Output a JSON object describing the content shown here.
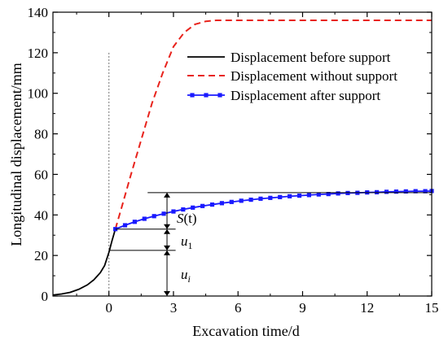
{
  "chart_data": {
    "type": "line",
    "xlabel": "Excavation time/d",
    "ylabel": "Longitudinal displacement/mm",
    "xlim": [
      -2.6,
      15
    ],
    "ylim": [
      0,
      140
    ],
    "x_ticks": [
      0,
      3,
      6,
      9,
      12,
      15
    ],
    "y_ticks": [
      0,
      20,
      40,
      60,
      80,
      100,
      120,
      140
    ],
    "grid": false,
    "legend_position": "top-right",
    "series": [
      {
        "name": "Displacement before support",
        "color": "#000000",
        "style": "solid",
        "marker": "none",
        "points": [
          [
            -2.6,
            0.5
          ],
          [
            -2.2,
            1.0
          ],
          [
            -1.8,
            1.8
          ],
          [
            -1.4,
            3.3
          ],
          [
            -1.0,
            5.5
          ],
          [
            -0.7,
            8.0
          ],
          [
            -0.4,
            11.5
          ],
          [
            -0.2,
            15.0
          ],
          [
            0.0,
            21.5
          ],
          [
            0.15,
            27.5
          ],
          [
            0.3,
            33.0
          ]
        ]
      },
      {
        "name": "Displacement without support",
        "color": "#e8231c",
        "style": "dashed",
        "marker": "none",
        "points": [
          [
            0.3,
            33.0
          ],
          [
            0.6,
            44.0
          ],
          [
            1.0,
            59.0
          ],
          [
            1.5,
            77.0
          ],
          [
            2.0,
            95.0
          ],
          [
            2.5,
            110.0
          ],
          [
            3.0,
            123.0
          ],
          [
            3.5,
            130.0
          ],
          [
            4.0,
            134.0
          ],
          [
            4.5,
            135.5
          ],
          [
            5.0,
            136.0
          ],
          [
            6.0,
            136.0
          ],
          [
            15.0,
            136.0
          ]
        ]
      },
      {
        "name": "Displacement after support",
        "color": "#1a1aff",
        "style": "solid",
        "marker": "square",
        "points": [
          [
            0.3,
            33.0
          ],
          [
            0.75,
            34.9
          ],
          [
            1.2,
            36.6
          ],
          [
            1.65,
            38.1
          ],
          [
            2.1,
            39.4
          ],
          [
            2.55,
            40.6
          ],
          [
            3.0,
            41.7
          ],
          [
            3.45,
            42.7
          ],
          [
            3.9,
            43.6
          ],
          [
            4.35,
            44.4
          ],
          [
            4.8,
            45.1
          ],
          [
            5.25,
            45.8
          ],
          [
            5.7,
            46.4
          ],
          [
            6.15,
            47.0
          ],
          [
            6.6,
            47.5
          ],
          [
            7.05,
            48.0
          ],
          [
            7.5,
            48.4
          ],
          [
            7.95,
            48.8
          ],
          [
            8.4,
            49.2
          ],
          [
            8.85,
            49.5
          ],
          [
            9.3,
            49.8
          ],
          [
            9.75,
            50.1
          ],
          [
            10.2,
            50.3
          ],
          [
            10.65,
            50.6
          ],
          [
            11.1,
            50.8
          ],
          [
            11.55,
            50.9
          ],
          [
            12.0,
            51.1
          ],
          [
            12.45,
            51.2
          ],
          [
            12.9,
            51.4
          ],
          [
            13.35,
            51.5
          ],
          [
            13.8,
            51.6
          ],
          [
            14.25,
            51.7
          ],
          [
            14.7,
            51.7
          ],
          [
            15.0,
            51.8
          ]
        ]
      }
    ],
    "annotations": {
      "s_label": "S",
      "s_suffix": "(t)",
      "u1_label": "u",
      "u1_sub": "1",
      "ui_label": "u",
      "ui_sub": "i"
    },
    "reference_line": {
      "x": 0,
      "y_top": 120,
      "color": "#888888",
      "style": "dotted"
    },
    "guide_levels": {
      "top": 51.0,
      "mid": 33.0,
      "low": 22.5,
      "arrow_x": 2.7
    }
  }
}
